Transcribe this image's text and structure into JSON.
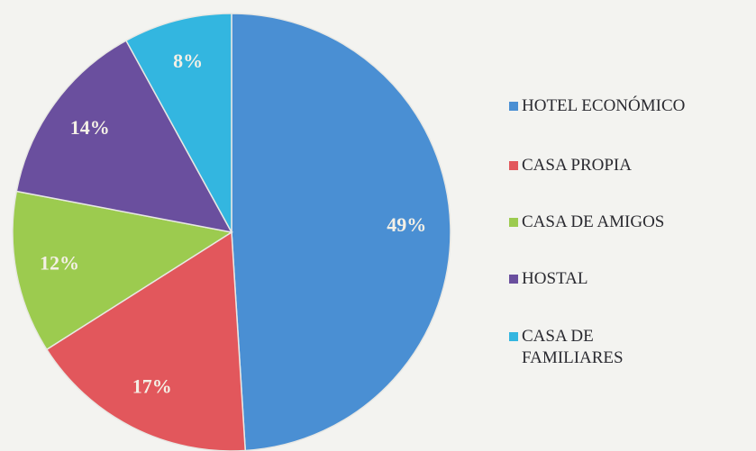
{
  "chart_data": {
    "type": "pie",
    "categories": [
      "HOTEL ECONÓMICO",
      "CASA PROPIA",
      "CASA DE AMIGOS",
      "HOSTAL",
      "CASA DE\nFAMILIARES"
    ],
    "values": [
      49,
      17,
      12,
      14,
      8
    ],
    "value_labels": [
      "49%",
      "17%",
      "12%",
      "14%",
      "8%"
    ],
    "colors": [
      "#4a8fd3",
      "#e2575c",
      "#9ccb4f",
      "#6a4f9e",
      "#33b6e0"
    ],
    "legend": "right"
  }
}
